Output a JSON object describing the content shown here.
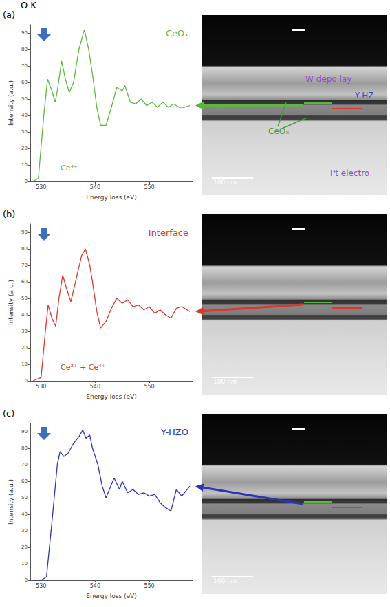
{
  "heading": "O K",
  "chart_data": [
    {
      "type": "line",
      "panel": "(a)",
      "title": "CeOₓ",
      "annotations": [
        "Ce⁴⁺"
      ],
      "xlabel": "Energy loss (eV)",
      "ylabel": "Intensity (a.u.)",
      "xlim": [
        528,
        558
      ],
      "xticks": [
        530,
        540,
        550
      ],
      "ylim": [
        0,
        95
      ],
      "yticks": [
        0,
        10,
        20,
        30,
        40,
        50,
        60,
        70,
        80,
        90
      ],
      "grid": false,
      "x": [
        528.5,
        529.5,
        530.5,
        531.2,
        532,
        532.6,
        533,
        533.8,
        534.5,
        535.2,
        536,
        537,
        538,
        538.8,
        539.5,
        540.3,
        541,
        542,
        543,
        544,
        545,
        545.5,
        546.5,
        547.5,
        548.5,
        549.5,
        550.5,
        551.5,
        552.5,
        553.5,
        554.5,
        555.5,
        556.5,
        557.5
      ],
      "series": [
        {
          "color": "#5cb83a",
          "values": [
            0,
            2,
            40,
            62,
            55,
            48,
            55,
            73,
            62,
            54,
            60,
            80,
            92,
            80,
            65,
            45,
            34,
            34,
            45,
            57,
            55,
            58,
            48,
            47,
            50,
            46,
            48,
            45,
            48,
            45,
            47,
            45,
            45,
            46
          ]
        }
      ]
    },
    {
      "type": "line",
      "panel": "(b)",
      "title": "Interface",
      "annotations": [
        "Ce³⁺ + Ce⁴⁺"
      ],
      "xlabel": "Energy loss (eV)",
      "ylabel": "Intensity (a.u.)",
      "xlim": [
        528,
        558
      ],
      "xticks": [
        530,
        540,
        550
      ],
      "ylim": [
        0,
        95
      ],
      "yticks": [
        0,
        10,
        20,
        30,
        40,
        50,
        60,
        70,
        80,
        90
      ],
      "grid": false,
      "x": [
        528.5,
        530,
        530.8,
        531.3,
        532,
        532.7,
        533.3,
        534,
        534.8,
        535.5,
        536.5,
        537.5,
        538.2,
        539,
        539.5,
        540.3,
        541,
        542,
        543,
        544,
        545,
        546,
        547,
        548,
        549,
        550,
        551,
        552,
        553,
        554,
        555,
        556,
        557.5
      ],
      "series": [
        {
          "color": "#e0352b",
          "values": [
            0,
            2,
            30,
            46,
            38,
            33,
            50,
            64,
            55,
            48,
            62,
            76,
            80,
            70,
            60,
            42,
            32,
            36,
            44,
            50,
            47,
            49,
            45,
            46,
            43,
            45,
            41,
            43,
            40,
            38,
            44,
            45,
            42
          ]
        }
      ]
    },
    {
      "type": "line",
      "panel": "(c)",
      "title": "Y-HZO",
      "annotations": [],
      "xlabel": "Energy loss (eV)",
      "ylabel": "Intensity (a.u.)",
      "xlim": [
        528,
        558
      ],
      "xticks": [
        530,
        540,
        550
      ],
      "ylim": [
        0,
        95
      ],
      "yticks": [
        0,
        10,
        20,
        30,
        40,
        50,
        60,
        70,
        80,
        90
      ],
      "grid": false,
      "x": [
        528.5,
        530,
        531,
        532,
        533,
        533.5,
        534.2,
        535,
        536,
        537,
        537.7,
        538.3,
        539,
        539.5,
        540.5,
        541.3,
        542,
        543,
        543.5,
        544.5,
        545,
        546,
        547,
        548,
        549,
        550,
        551,
        552,
        553,
        554,
        555,
        556,
        557.5
      ],
      "series": [
        {
          "color": "#2b34b8",
          "values": [
            0,
            0,
            2,
            35,
            70,
            78,
            75,
            77,
            83,
            87,
            91,
            86,
            88,
            80,
            70,
            57,
            50,
            58,
            62,
            55,
            60,
            53,
            55,
            52,
            53,
            51,
            52,
            47,
            44,
            42,
            55,
            51,
            57
          ]
        }
      ]
    }
  ],
  "images": [
    {
      "labels": [
        {
          "text": "W depo lay",
          "color": "#8a4fc9"
        },
        {
          "text": "Y-HZ",
          "color": "#3b4bc0"
        },
        {
          "text": "CeOₓ",
          "color": "#3f9e3a"
        },
        {
          "text": "Pt electro",
          "color": "#8a4fc9"
        }
      ],
      "scale_bar": "100 nm"
    },
    {
      "labels": [],
      "scale_bar": "100 nm"
    },
    {
      "labels": [],
      "scale_bar": "100 nm"
    }
  ]
}
